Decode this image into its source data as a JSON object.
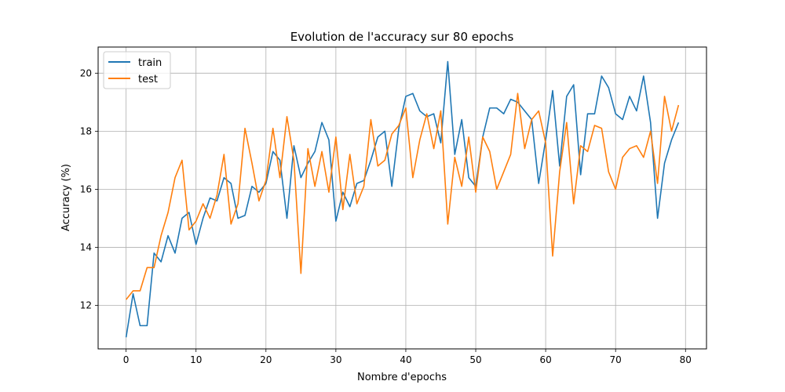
{
  "chart_data": {
    "type": "line",
    "title": "Evolution de l'accuracy sur 80 epochs",
    "xlabel": "Nombre d'epochs",
    "ylabel": "Accuracy (%)",
    "xlim": [
      -4,
      83
    ],
    "ylim": [
      10.5,
      20.9
    ],
    "xticks": [
      0,
      10,
      20,
      30,
      40,
      50,
      60,
      70,
      80
    ],
    "yticks": [
      12,
      14,
      16,
      18,
      20
    ],
    "grid": true,
    "legend_position": "top-left",
    "x": [
      0,
      1,
      2,
      3,
      4,
      5,
      6,
      7,
      8,
      9,
      10,
      11,
      12,
      13,
      14,
      15,
      16,
      17,
      18,
      19,
      20,
      21,
      22,
      23,
      24,
      25,
      26,
      27,
      28,
      29,
      30,
      31,
      32,
      33,
      34,
      35,
      36,
      37,
      38,
      39,
      40,
      41,
      42,
      43,
      44,
      45,
      46,
      47,
      48,
      49,
      50,
      51,
      52,
      53,
      54,
      55,
      56,
      57,
      58,
      59,
      60,
      61,
      62,
      63,
      64,
      65,
      66,
      67,
      68,
      69,
      70,
      71,
      72,
      73,
      74,
      75,
      76,
      77,
      78,
      79
    ],
    "series": [
      {
        "name": "train",
        "color": "#1f77b4",
        "values": [
          10.9,
          12.4,
          11.3,
          11.3,
          13.8,
          13.5,
          14.4,
          13.8,
          15.0,
          15.2,
          14.1,
          15.0,
          15.7,
          15.6,
          16.4,
          16.2,
          15.0,
          15.1,
          16.1,
          15.9,
          16.2,
          17.3,
          17.0,
          15.0,
          17.5,
          16.4,
          16.9,
          17.3,
          18.3,
          17.7,
          14.9,
          15.9,
          15.4,
          16.2,
          16.3,
          17.0,
          17.8,
          18.0,
          16.1,
          18.1,
          19.2,
          19.3,
          18.7,
          18.5,
          18.6,
          17.6,
          20.4,
          17.2,
          18.4,
          16.4,
          16.1,
          17.8,
          18.8,
          18.8,
          18.6,
          19.1,
          19.0,
          18.7,
          18.4,
          16.2,
          17.7,
          19.4,
          16.8,
          19.2,
          19.6,
          16.5,
          18.6,
          18.6,
          19.9,
          19.5,
          18.6,
          18.4,
          19.2,
          18.7,
          19.9,
          18.3,
          15.0,
          16.9,
          17.7,
          18.3
        ]
      },
      {
        "name": "test",
        "color": "#ff7f0e",
        "values": [
          12.2,
          12.5,
          12.5,
          13.3,
          13.3,
          14.4,
          15.2,
          16.4,
          17.0,
          14.6,
          14.9,
          15.5,
          15.0,
          15.8,
          17.2,
          14.8,
          15.5,
          18.1,
          16.9,
          15.6,
          16.3,
          18.1,
          16.4,
          18.5,
          17.0,
          13.1,
          17.4,
          16.1,
          17.3,
          15.9,
          17.8,
          15.3,
          17.2,
          15.5,
          16.1,
          18.4,
          16.8,
          17.0,
          17.9,
          18.2,
          18.8,
          16.4,
          17.7,
          18.6,
          17.4,
          18.7,
          14.8,
          17.1,
          16.1,
          17.8,
          15.9,
          17.8,
          17.3,
          16.0,
          16.6,
          17.2,
          19.3,
          17.4,
          18.4,
          18.7,
          17.6,
          13.7,
          16.6,
          18.3,
          15.5,
          17.5,
          17.3,
          18.2,
          18.1,
          16.6,
          16.0,
          17.1,
          17.4,
          17.5,
          17.1,
          18.0,
          16.2,
          19.2,
          18.0,
          18.9
        ]
      }
    ]
  }
}
